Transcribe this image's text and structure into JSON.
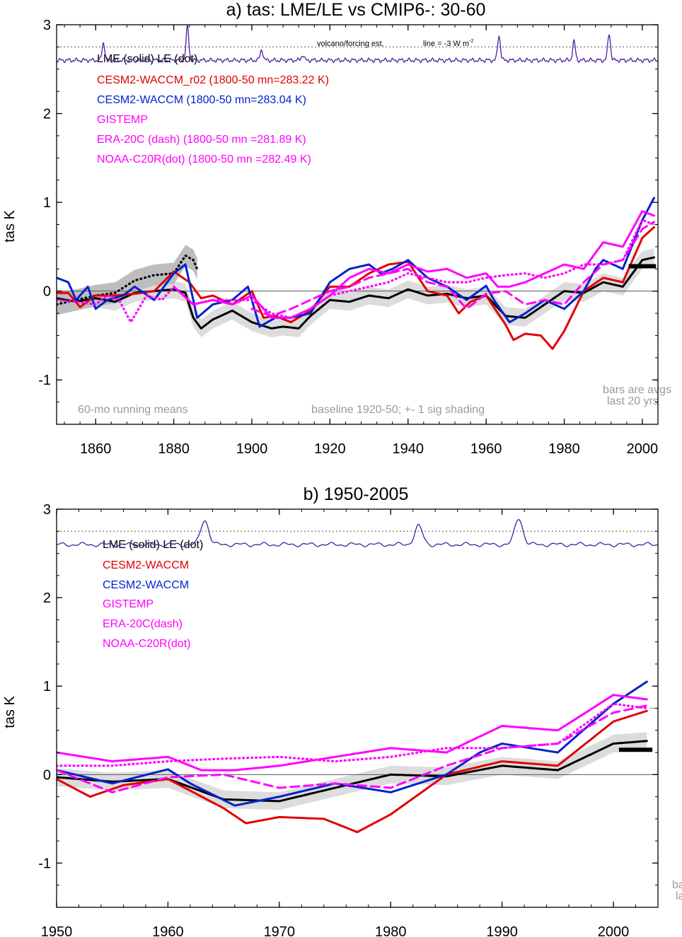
{
  "colors": {
    "lme": "#000000",
    "cesm_r02": "#e00000",
    "cesm": "#0022cc",
    "obs": "#ff00ff",
    "volcano": "#4b1fa0",
    "shade": "#cccccc",
    "note": "#9a9a9a"
  },
  "charts": [
    {
      "title": "a) tas: LME/LE vs CMIP6-: 30-60",
      "ylabel": "tas K",
      "xlim": [
        1850,
        2004
      ],
      "ylim": [
        -1.5,
        3.0
      ],
      "xticks": [
        1860,
        1880,
        1900,
        1920,
        1940,
        1960,
        1980,
        2000
      ],
      "yticks": [
        -1,
        0,
        1,
        2,
        3
      ],
      "volcano_note": "volcano/forcing est.",
      "line_note": "line = -3 W m",
      "line_note_sup": "-2",
      "legend": [
        {
          "text": "LME (solid)   LE (dot)",
          "color": "#000000"
        },
        {
          "text": "CESM2-WACCM_r02 (1800-50 mn=283.22 K)",
          "color": "#e00000"
        },
        {
          "text": "CESM2-WACCM (1800-50 mn=283.04 K)",
          "color": "#0022cc"
        },
        {
          "text": "GISTEMP",
          "color": "#ff00ff"
        },
        {
          "text": "ERA-20C (dash) (1800-50 mn =281.89 K)",
          "color": "#ff00ff"
        },
        {
          "text": "NOAA-C20R(dot) (1800-50 mn =282.49 K)",
          "color": "#ff00ff"
        }
      ],
      "footnote_left": "60-mo running means",
      "footnote_mid": "baseline 1920-50; +- 1 sig shading",
      "bars_note": [
        "bars are avgs",
        "last 20 yrs"
      ]
    },
    {
      "title": "b) 1950-2005",
      "ylabel": "tas K",
      "xlim": [
        1950,
        2004
      ],
      "ylim": [
        -1.5,
        3.0
      ],
      "xticks": [
        1950,
        1960,
        1970,
        1980,
        1990,
        2000
      ],
      "yticks": [
        -1,
        0,
        1,
        2,
        3
      ],
      "legend": [
        {
          "text": "LME (solid)      LE (dot)",
          "color": "#000000"
        },
        {
          "text": "CESM2-WACCM",
          "color": "#e00000"
        },
        {
          "text": "CESM2-WACCM",
          "color": "#0022cc"
        },
        {
          "text": "GISTEMP",
          "color": "#ff00ff"
        },
        {
          "text": "ERA-20C(dash)",
          "color": "#ff00ff"
        },
        {
          "text": "NOAA-C20R(dot)",
          "color": "#ff00ff"
        }
      ],
      "bars_note": [
        "ba",
        "la"
      ]
    }
  ],
  "chart_data": {
    "type": "line",
    "forcing_reference_line": 2.75,
    "bars_last20yr": {
      "LME": 0.28
    },
    "volcano_peaks": [
      [
        1862,
        2.8
      ],
      [
        1883.5,
        2.97
      ],
      [
        1902.5,
        2.72
      ],
      [
        1913,
        2.66
      ],
      [
        1963.3,
        2.88
      ],
      [
        1982.5,
        2.81
      ],
      [
        1991.5,
        2.9
      ]
    ],
    "series": [
      {
        "name": "LME",
        "style": "solid",
        "color": "#000000",
        "x": [
          1850,
          1855,
          1860,
          1865,
          1870,
          1875,
          1880,
          1883,
          1885,
          1887,
          1890,
          1895,
          1900,
          1905,
          1908,
          1912,
          1915,
          1920,
          1925,
          1930,
          1935,
          1940,
          1945,
          1950,
          1955,
          1960,
          1965,
          1970,
          1975,
          1980,
          1985,
          1990,
          1995,
          2000,
          2003
        ],
        "y": [
          -0.08,
          -0.12,
          -0.08,
          -0.12,
          -0.02,
          0.0,
          0.02,
          -0.02,
          -0.3,
          -0.42,
          -0.32,
          -0.22,
          -0.35,
          -0.42,
          -0.4,
          -0.42,
          -0.28,
          -0.1,
          -0.12,
          -0.05,
          -0.08,
          0.02,
          -0.05,
          -0.03,
          -0.08,
          -0.05,
          -0.28,
          -0.3,
          -0.15,
          0.0,
          -0.02,
          0.1,
          0.05,
          0.35,
          0.38
        ]
      },
      {
        "name": "LE",
        "style": "dot",
        "color": "#000000",
        "x": [
          1850,
          1855,
          1860,
          1865,
          1870,
          1875,
          1880,
          1883,
          1885,
          1886
        ],
        "y": [
          -0.15,
          -0.1,
          -0.05,
          -0.02,
          0.12,
          0.18,
          0.2,
          0.4,
          0.35,
          0.25
        ]
      },
      {
        "name": "CESM2-WACCM_r02",
        "style": "solid",
        "color": "#e00000",
        "x": [
          1850,
          1853,
          1856,
          1860,
          1865,
          1870,
          1875,
          1880,
          1884,
          1887,
          1890,
          1895,
          1900,
          1903,
          1906,
          1910,
          1915,
          1920,
          1925,
          1930,
          1935,
          1940,
          1945,
          1950,
          1953,
          1956,
          1960,
          1965,
          1967,
          1970,
          1974,
          1977,
          1980,
          1985,
          1990,
          1995,
          2000,
          2003
        ],
        "y": [
          -0.02,
          -0.02,
          -0.18,
          -0.05,
          -0.05,
          -0.03,
          0.0,
          0.22,
          0.1,
          -0.08,
          -0.05,
          -0.15,
          0.0,
          -0.3,
          -0.28,
          -0.35,
          -0.22,
          0.05,
          0.05,
          0.2,
          0.3,
          0.33,
          0.0,
          -0.05,
          -0.25,
          -0.12,
          -0.05,
          -0.38,
          -0.55,
          -0.48,
          -0.5,
          -0.65,
          -0.45,
          0.0,
          0.15,
          0.1,
          0.6,
          0.72
        ]
      },
      {
        "name": "CESM2-WACCM",
        "style": "solid",
        "color": "#0022cc",
        "x": [
          1850,
          1853,
          1855,
          1858,
          1860,
          1863,
          1867,
          1870,
          1875,
          1880,
          1883,
          1886,
          1890,
          1895,
          1899,
          1902,
          1906,
          1910,
          1915,
          1920,
          1925,
          1930,
          1933,
          1936,
          1940,
          1945,
          1950,
          1955,
          1960,
          1962,
          1966,
          1970,
          1975,
          1980,
          1985,
          1988,
          1990,
          1995,
          2000,
          2003
        ],
        "y": [
          0.15,
          0.1,
          -0.1,
          0.05,
          -0.2,
          -0.1,
          -0.05,
          0.05,
          -0.1,
          0.2,
          0.3,
          -0.3,
          -0.15,
          -0.1,
          0.05,
          -0.4,
          -0.3,
          -0.3,
          -0.25,
          0.1,
          0.25,
          0.3,
          0.2,
          0.25,
          0.35,
          0.15,
          0.05,
          -0.1,
          0.06,
          -0.1,
          -0.35,
          -0.25,
          -0.1,
          -0.2,
          0.0,
          0.25,
          0.35,
          0.25,
          0.8,
          1.05
        ]
      },
      {
        "name": "GISTEMP",
        "style": "solid",
        "color": "#ff00ff",
        "x": [
          1880,
          1885,
          1890,
          1895,
          1900,
          1905,
          1910,
          1915,
          1920,
          1925,
          1930,
          1935,
          1940,
          1945,
          1950,
          1955,
          1960,
          1963,
          1966,
          1970,
          1975,
          1980,
          1985,
          1990,
          1995,
          2000,
          2003
        ],
        "y": [
          0.05,
          -0.15,
          -0.1,
          -0.15,
          -0.05,
          -0.3,
          -0.3,
          -0.2,
          -0.05,
          0.15,
          0.25,
          0.2,
          0.3,
          0.22,
          0.25,
          0.15,
          0.2,
          0.05,
          0.05,
          0.1,
          0.2,
          0.3,
          0.25,
          0.55,
          0.5,
          0.9,
          0.85
        ]
      },
      {
        "name": "ERA-20C",
        "style": "dash",
        "color": "#ff00ff",
        "x": [
          1900,
          1905,
          1910,
          1915,
          1920,
          1925,
          1930,
          1935,
          1940,
          1945,
          1950,
          1955,
          1960,
          1965,
          1970,
          1975,
          1980,
          1985,
          1990,
          1995,
          2000,
          2003
        ],
        "y": [
          -0.2,
          -0.28,
          -0.2,
          -0.1,
          0.0,
          0.05,
          0.15,
          0.2,
          0.25,
          0.1,
          0.05,
          -0.2,
          -0.03,
          0.0,
          -0.15,
          -0.1,
          -0.15,
          0.1,
          0.3,
          0.35,
          0.7,
          0.78
        ]
      },
      {
        "name": "NOAA-C20R",
        "style": "dot",
        "color": "#ff00ff",
        "x": [
          1850,
          1855,
          1860,
          1863,
          1866,
          1869,
          1873,
          1877,
          1880,
          1885,
          1890,
          1895,
          1900,
          1905,
          1910,
          1915,
          1920,
          1925,
          1930,
          1935,
          1940,
          1945,
          1950,
          1955,
          1960,
          1965,
          1970,
          1975,
          1980,
          1985,
          1990,
          1995,
          2000,
          2003
        ],
        "y": [
          -0.1,
          -0.12,
          -0.15,
          -0.05,
          -0.1,
          -0.35,
          -0.05,
          -0.1,
          0.05,
          -0.15,
          -0.1,
          -0.1,
          -0.1,
          -0.25,
          -0.3,
          -0.2,
          -0.05,
          0.0,
          0.05,
          0.1,
          0.2,
          0.15,
          0.1,
          0.1,
          0.15,
          0.18,
          0.2,
          0.15,
          0.2,
          0.3,
          0.3,
          0.35,
          0.8,
          0.75
        ]
      }
    ]
  }
}
